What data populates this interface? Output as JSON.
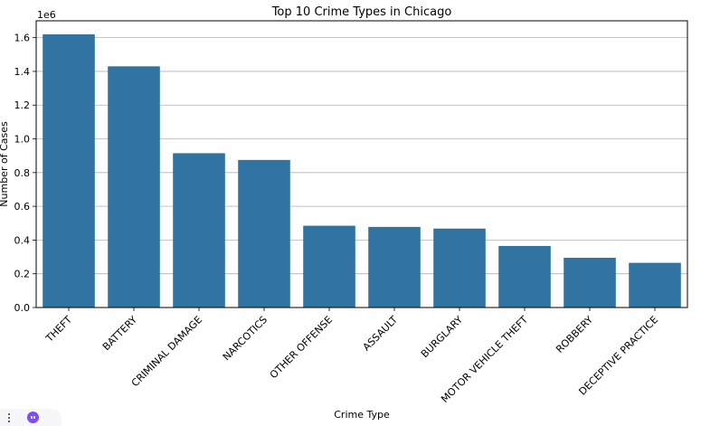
{
  "chart_data": {
    "type": "bar",
    "title": "Top 10 Crime Types in Chicago",
    "xlabel": "Crime Type",
    "ylabel": "Number of Cases",
    "offset_label": "1e6",
    "categories": [
      "THEFT",
      "BATTERY",
      "CRIMINAL DAMAGE",
      "NARCOTICS",
      "OTHER OFFENSE",
      "ASSAULT",
      "BURGLARY",
      "MOTOR VEHICLE THEFT",
      "ROBBERY",
      "DECEPTIVE PRACTICE"
    ],
    "values": [
      1620000,
      1430000,
      915000,
      875000,
      485000,
      478000,
      468000,
      365000,
      295000,
      265000
    ],
    "ylim": [
      0,
      1700000
    ],
    "yticks": [
      0,
      200000,
      400000,
      600000,
      800000,
      1000000,
      1200000,
      1400000,
      1600000
    ],
    "ytick_labels": [
      "0.0",
      "0.2",
      "0.4",
      "0.6",
      "0.8",
      "1.0",
      "1.2",
      "1.4",
      "1.6"
    ],
    "grid": "y",
    "bar_color": "#3274a1"
  },
  "toolbar": {
    "menu_icon": "kebab-menu-icon",
    "assistant_icon": "assistant-bot-icon"
  }
}
